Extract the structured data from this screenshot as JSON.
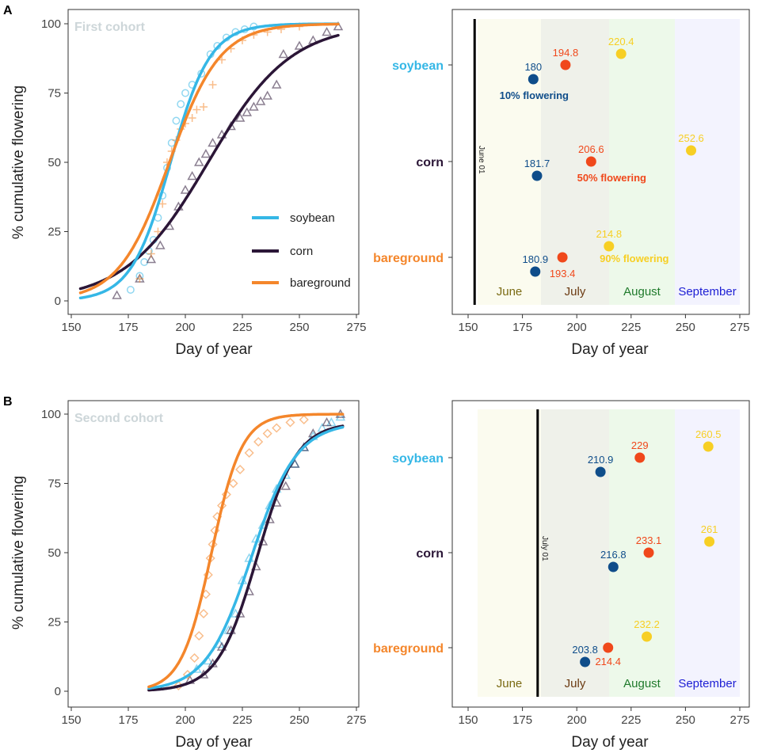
{
  "colors": {
    "soybean": "#35b7e6",
    "corn": "#2b1637",
    "bareground": "#f4862b",
    "pt10": "#0f4d8a",
    "pt50": "#f0481b",
    "pt90": "#f7cf24",
    "june_label": "#7a6a12",
    "july_label": "#6b3a12",
    "august_label": "#1f7a2b",
    "september_label": "#1d1ed4",
    "june_fill": "#fbfbef",
    "july_fill": "#eff1ea",
    "august_fill": "#edf9ea",
    "september_fill": "#f3f3fe",
    "cohort_label": "#cdd6d9"
  },
  "labels": {
    "panel_a": "A",
    "panel_b": "B",
    "ylabel": "% cumulative flowering",
    "xlabel": "Day of year",
    "first_cohort": "First cohort",
    "second_cohort": "Second cohort",
    "legend": [
      "soybean",
      "corn",
      "bareground"
    ],
    "annot_10": "10% flowering",
    "annot_50": "50% flowering",
    "annot_90": "90% flowering",
    "vline_a": "June 01",
    "vline_b": "July 01",
    "months": [
      "June",
      "July",
      "August",
      "September"
    ]
  },
  "chart_data": [
    {
      "panel": "A-left",
      "type": "line",
      "title": "First cohort",
      "xlabel": "Day of year",
      "ylabel": "% cumulative flowering",
      "xlim": [
        150,
        275
      ],
      "ylim": [
        0,
        100
      ],
      "xticks": [
        150,
        175,
        200,
        225,
        250,
        275
      ],
      "yticks": [
        0,
        25,
        50,
        75,
        100
      ],
      "curve_range": [
        154,
        267
      ],
      "series": [
        {
          "name": "soybean",
          "marker": "circle",
          "t50": 193.5,
          "k": 0.115,
          "ymax": 100,
          "points": [
            [
              176,
              4
            ],
            [
              180,
              9
            ],
            [
              182,
              14
            ],
            [
              184,
              18
            ],
            [
              186,
              22
            ],
            [
              188,
              30
            ],
            [
              190,
              38
            ],
            [
              192,
              48
            ],
            [
              194,
              57
            ],
            [
              196,
              65
            ],
            [
              198,
              71
            ],
            [
              200,
              75
            ],
            [
              203,
              78
            ],
            [
              207,
              82
            ],
            [
              211,
              89
            ],
            [
              214,
              92
            ],
            [
              218,
              95
            ],
            [
              222,
              97
            ],
            [
              226,
              98
            ],
            [
              230,
              99
            ]
          ]
        },
        {
          "name": "corn",
          "marker": "triangle",
          "t50": 210,
          "k": 0.055,
          "ymax": 100,
          "points": [
            [
              170,
              2
            ],
            [
              180,
              8
            ],
            [
              185,
              15
            ],
            [
              189,
              20
            ],
            [
              193,
              27
            ],
            [
              197,
              34
            ],
            [
              200,
              40
            ],
            [
              203,
              45
            ],
            [
              206,
              50
            ],
            [
              209,
              53
            ],
            [
              212,
              57
            ],
            [
              216,
              60
            ],
            [
              220,
              63
            ],
            [
              224,
              66
            ],
            [
              227,
              68
            ],
            [
              230,
              70
            ],
            [
              233,
              72
            ],
            [
              236,
              74
            ],
            [
              240,
              78
            ],
            [
              243,
              89
            ],
            [
              250,
              92
            ],
            [
              256,
              94
            ],
            [
              262,
              97
            ],
            [
              267,
              99
            ]
          ]
        },
        {
          "name": "bareground",
          "marker": "plus",
          "t50": 193,
          "k": 0.09,
          "ymax": 100,
          "points": [
            [
              180,
              8
            ],
            [
              185,
              17
            ],
            [
              188,
              25
            ],
            [
              190,
              35
            ],
            [
              192,
              50
            ],
            [
              194,
              54
            ],
            [
              196,
              58
            ],
            [
              198,
              62
            ],
            [
              200,
              64
            ],
            [
              203,
              66
            ],
            [
              205,
              69
            ],
            [
              208,
              70
            ],
            [
              212,
              78
            ],
            [
              216,
              87
            ],
            [
              220,
              91
            ],
            [
              225,
              94
            ],
            [
              230,
              96
            ],
            [
              236,
              97
            ],
            [
              242,
              98
            ],
            [
              250,
              99
            ]
          ]
        }
      ]
    },
    {
      "panel": "A-right",
      "type": "scatter",
      "xlabel": "Day of year",
      "xlim": [
        150,
        275
      ],
      "xticks": [
        150,
        175,
        200,
        225,
        250,
        275
      ],
      "categories": [
        "soybean",
        "corn",
        "bareground"
      ],
      "vline": 153,
      "series": [
        {
          "name": "10% flowering",
          "values": [
            180,
            181.7,
            180.9
          ],
          "labels": [
            "180",
            "181.7",
            "180.9"
          ]
        },
        {
          "name": "50% flowering",
          "values": [
            194.8,
            206.6,
            193.4
          ],
          "labels": [
            "194.8",
            "206.6",
            "193.4"
          ]
        },
        {
          "name": "90% flowering",
          "values": [
            220.4,
            252.6,
            214.8
          ],
          "labels": [
            "220.4",
            "252.6",
            "214.8"
          ]
        }
      ]
    },
    {
      "panel": "B-left",
      "type": "line",
      "title": "Second cohort",
      "xlabel": "Day of year",
      "ylabel": "% cumulative flowering",
      "xlim": [
        150,
        275
      ],
      "ylim": [
        0,
        100
      ],
      "xticks": [
        150,
        175,
        200,
        225,
        250,
        275
      ],
      "yticks": [
        0,
        25,
        50,
        75,
        100
      ],
      "curve_range": [
        184,
        269
      ],
      "series": [
        {
          "name": "soybean",
          "marker": "triangle",
          "t50": 229,
          "k": 0.1,
          "ymax": 97,
          "points": [
            [
              205,
              8
            ],
            [
              210,
              11
            ],
            [
              215,
              17
            ],
            [
              219,
              22
            ],
            [
              222,
              28
            ],
            [
              225,
              40
            ],
            [
              228,
              48
            ],
            [
              231,
              55
            ],
            [
              234,
              60
            ],
            [
              237,
              67
            ],
            [
              240,
              73
            ],
            [
              244,
              78
            ],
            [
              248,
              82
            ],
            [
              252,
              88
            ],
            [
              256,
              92
            ],
            [
              260,
              95
            ],
            [
              264,
              97
            ],
            [
              268,
              99
            ]
          ]
        },
        {
          "name": "corn",
          "marker": "triangle",
          "t50": 231.5,
          "k": 0.115,
          "ymax": 97,
          "points": [
            [
              202,
              4
            ],
            [
              208,
              6
            ],
            [
              212,
              10
            ],
            [
              216,
              16
            ],
            [
              220,
              22
            ],
            [
              224,
              28
            ],
            [
              228,
              36
            ],
            [
              231,
              45
            ],
            [
              234,
              54
            ],
            [
              237,
              62
            ],
            [
              240,
              68
            ],
            [
              244,
              74
            ],
            [
              248,
              82
            ],
            [
              252,
              88
            ],
            [
              256,
              93
            ],
            [
              262,
              97
            ],
            [
              268,
              100
            ]
          ]
        },
        {
          "name": "bareground",
          "marker": "diamond",
          "t50": 211.5,
          "k": 0.15,
          "ymax": 100,
          "points": [
            [
              197,
              2
            ],
            [
              201,
              6
            ],
            [
              204,
              12
            ],
            [
              206,
              20
            ],
            [
              208,
              28
            ],
            [
              209,
              35
            ],
            [
              210,
              42
            ],
            [
              211,
              48
            ],
            [
              212,
              53
            ],
            [
              213,
              58
            ],
            [
              214,
              63
            ],
            [
              216,
              67
            ],
            [
              218,
              71
            ],
            [
              221,
              75
            ],
            [
              224,
              80
            ],
            [
              228,
              86
            ],
            [
              232,
              90
            ],
            [
              236,
              93
            ],
            [
              240,
              95
            ],
            [
              246,
              97
            ],
            [
              252,
              98
            ]
          ]
        }
      ]
    },
    {
      "panel": "B-right",
      "type": "scatter",
      "xlabel": "Day of year",
      "xlim": [
        150,
        275
      ],
      "xticks": [
        150,
        175,
        200,
        225,
        250,
        275
      ],
      "categories": [
        "soybean",
        "corn",
        "bareground"
      ],
      "vline": 182,
      "series": [
        {
          "name": "10% flowering",
          "values": [
            210.9,
            216.8,
            203.8
          ],
          "labels": [
            "210.9",
            "216.8",
            "203.8"
          ]
        },
        {
          "name": "50% flowering",
          "values": [
            229,
            233.1,
            214.4
          ],
          "labels": [
            "229",
            "233.1",
            "214.4"
          ]
        },
        {
          "name": "90% flowering",
          "values": [
            260.5,
            261,
            232.2
          ],
          "labels": [
            "260.5",
            "261",
            "232.2"
          ]
        }
      ]
    }
  ]
}
